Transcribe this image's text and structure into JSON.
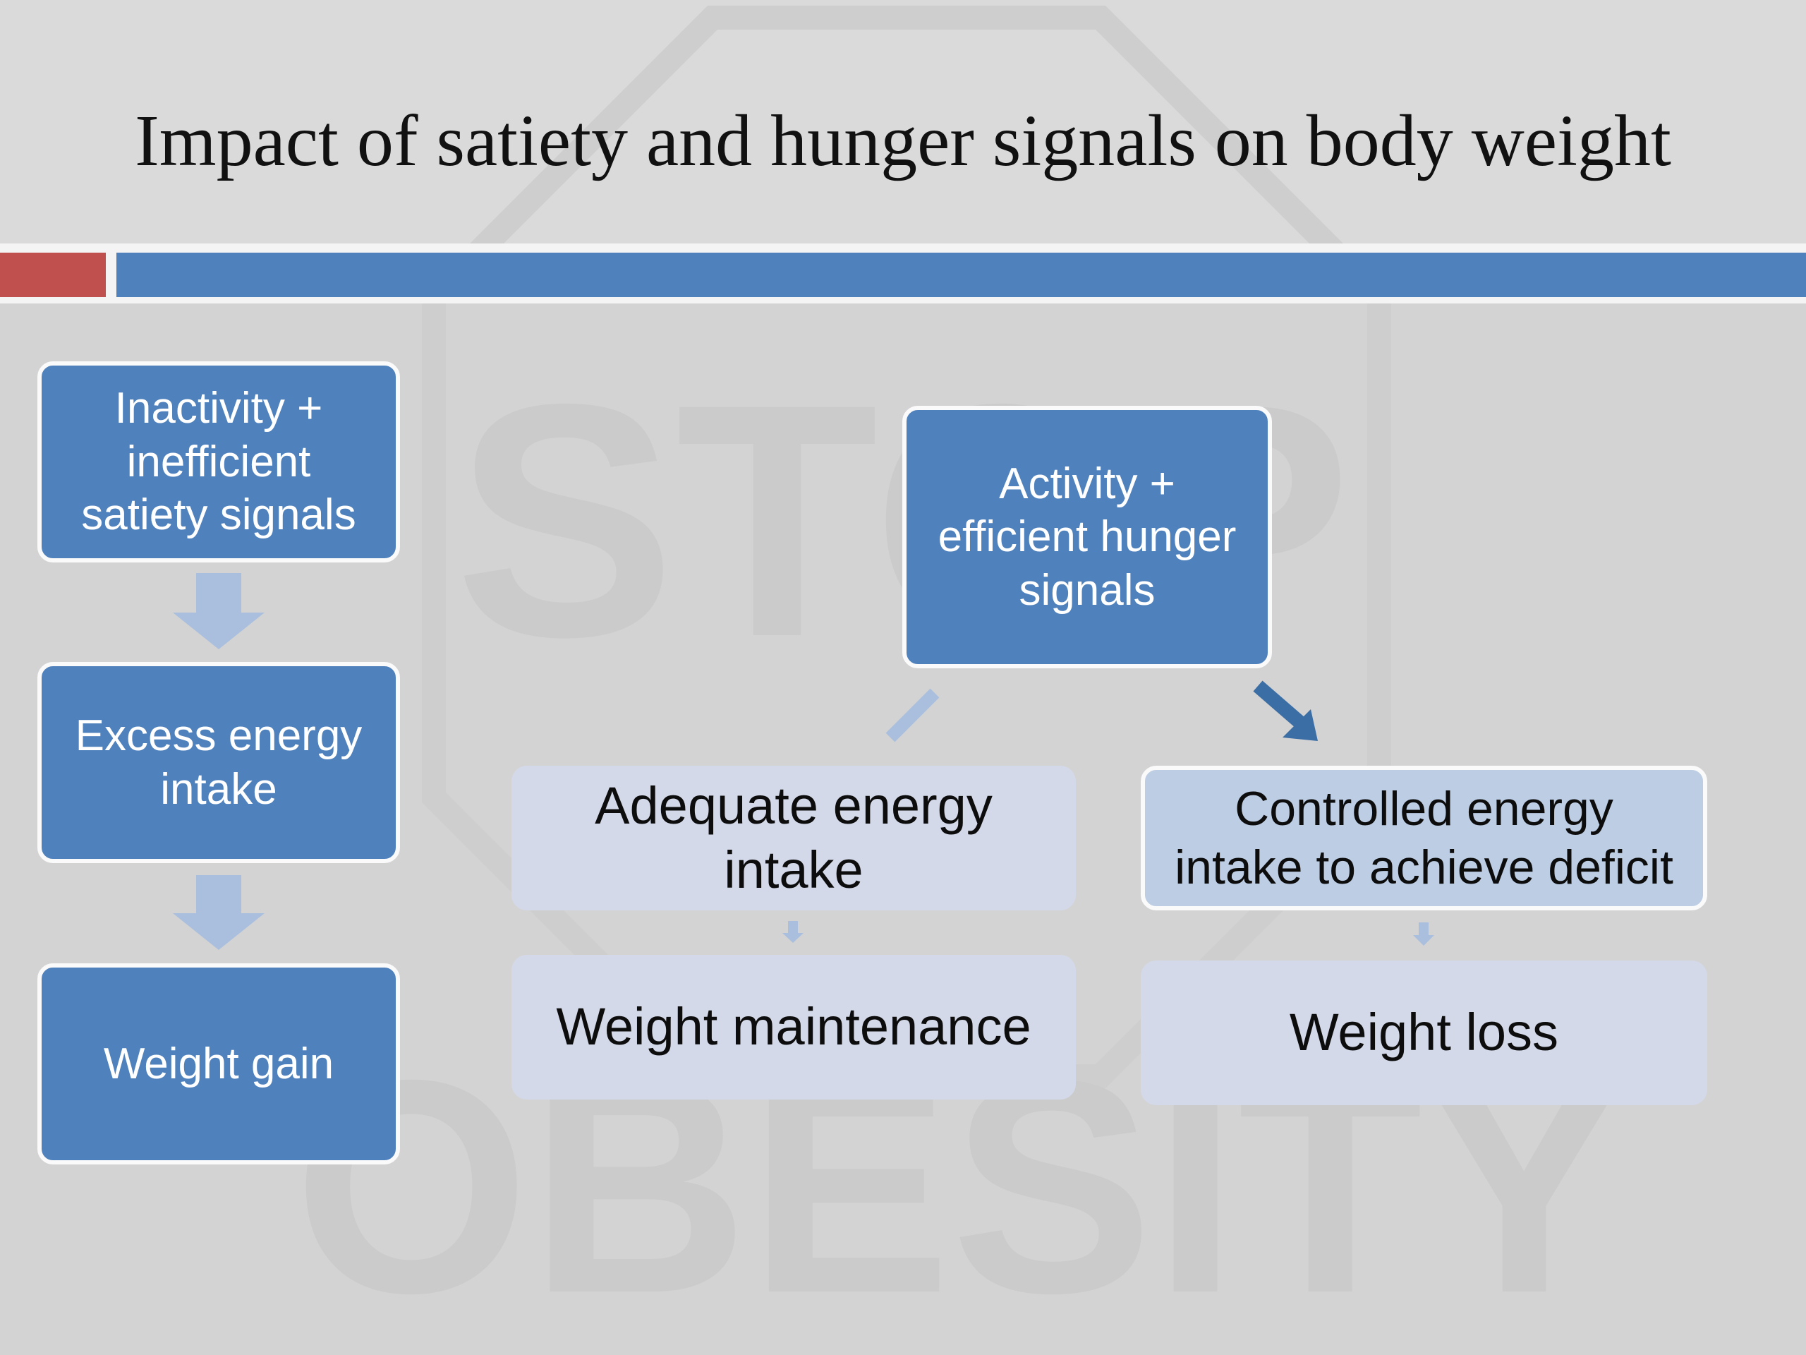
{
  "slide": {
    "title": "Impact of satiety and hunger signals on body weight",
    "left_chain": {
      "step1": [
        "Inactivity +",
        "inefficient",
        "satiety signals"
      ],
      "step2": [
        "Excess energy",
        "intake"
      ],
      "step3": "Weight gain"
    },
    "right_tree": {
      "root": [
        "Activity +",
        "efficient hunger",
        "signals"
      ],
      "branch_a": {
        "intake": [
          "Adequate energy",
          "intake"
        ],
        "outcome": "Weight maintenance"
      },
      "branch_b": {
        "intake": [
          "Controlled energy",
          "intake to achieve deficit"
        ],
        "outcome": "Weight loss"
      }
    },
    "watermark": [
      "STOP",
      "OBESITY"
    ]
  },
  "colors": {
    "accent_blue": "#4f81bd",
    "accent_red": "#c0504d",
    "light_box": "#d3d9e8",
    "highlight_box": "#bccde4",
    "arrow_faded": "#a9bfdd"
  }
}
